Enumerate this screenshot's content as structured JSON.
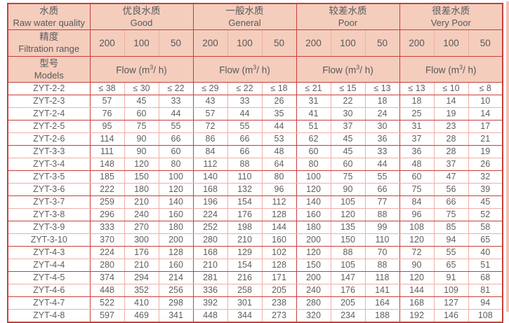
{
  "colors": {
    "border_dark": "#c5413c",
    "border_light": "#f1aea7",
    "header_fill": "#f4cdbd",
    "text": "#595959",
    "edge_strip": "#f3c2b4"
  },
  "table": {
    "header": {
      "quality_cn": "水质",
      "quality_en": "Raw water quality",
      "precision_cn": "精度",
      "precision_en": "Filtration range",
      "models_cn": "型号",
      "models_en": "Models",
      "flow_label_prefix": "Flow (m",
      "flow_sup": "3",
      "flow_label_suffix": "/ h)",
      "groups": [
        {
          "cn": "优良水质",
          "en": "Good"
        },
        {
          "cn": "一般水质",
          "en": "General"
        },
        {
          "cn": "较差水质",
          "en": "Poor"
        },
        {
          "cn": "很差水质",
          "en": "Very Poor"
        }
      ],
      "ranges": [
        "200",
        "100",
        "50"
      ]
    },
    "rows": [
      {
        "model": "ZYT-2-2",
        "values": [
          "≤ 38",
          "≤ 30",
          "≤ 22",
          "≤ 29",
          "≤ 22",
          "≤ 18",
          "≤ 21",
          "≤ 15",
          "≤ 13",
          "≤ 13",
          "≤ 10",
          "≤ 8"
        ]
      },
      {
        "model": "ZYT-2-3",
        "values": [
          "57",
          "45",
          "33",
          "43",
          "33",
          "26",
          "31",
          "22",
          "18",
          "18",
          "14",
          "10"
        ]
      },
      {
        "model": "ZYT-2-4",
        "values": [
          "76",
          "60",
          "44",
          "57",
          "44",
          "35",
          "41",
          "30",
          "24",
          "25",
          "19",
          "14"
        ]
      },
      {
        "model": "ZYT-2-5",
        "values": [
          "95",
          "75",
          "55",
          "72",
          "55",
          "44",
          "51",
          "37",
          "30",
          "31",
          "23",
          "17"
        ]
      },
      {
        "model": "ZYT-2-6",
        "values": [
          "114",
          "90",
          "66",
          "86",
          "66",
          "53",
          "62",
          "45",
          "36",
          "37",
          "28",
          "21"
        ]
      },
      {
        "model": "ZYT-3-3",
        "values": [
          "111",
          "90",
          "60",
          "84",
          "66",
          "48",
          "60",
          "45",
          "33",
          "36",
          "28",
          "19"
        ]
      },
      {
        "model": "ZYT-3-4",
        "values": [
          "148",
          "120",
          "80",
          "112",
          "88",
          "64",
          "80",
          "60",
          "44",
          "48",
          "37",
          "26"
        ]
      },
      {
        "model": "ZYT-3-5",
        "values": [
          "185",
          "150",
          "100",
          "140",
          "110",
          "80",
          "100",
          "75",
          "55",
          "60",
          "47",
          "32"
        ]
      },
      {
        "model": "ZYT-3-6",
        "values": [
          "222",
          "180",
          "120",
          "168",
          "132",
          "96",
          "120",
          "90",
          "66",
          "75",
          "56",
          "39"
        ]
      },
      {
        "model": "ZYT-3-7",
        "values": [
          "259",
          "210",
          "140",
          "196",
          "154",
          "112",
          "140",
          "105",
          "77",
          "84",
          "66",
          "45"
        ]
      },
      {
        "model": "ZYT-3-8",
        "values": [
          "296",
          "240",
          "160",
          "224",
          "176",
          "128",
          "160",
          "120",
          "88",
          "96",
          "75",
          "52"
        ]
      },
      {
        "model": "ZYT-3-9",
        "values": [
          "333",
          "270",
          "180",
          "252",
          "198",
          "144",
          "180",
          "135",
          "99",
          "108",
          "85",
          "58"
        ]
      },
      {
        "model": "ZYT-3-10",
        "values": [
          "370",
          "300",
          "200",
          "280",
          "210",
          "160",
          "200",
          "150",
          "110",
          "120",
          "94",
          "65"
        ]
      },
      {
        "model": "ZYT-4-3",
        "values": [
          "224",
          "176",
          "128",
          "168",
          "129",
          "102",
          "120",
          "88",
          "70",
          "72",
          "55",
          "40"
        ]
      },
      {
        "model": "ZYT-4-4",
        "values": [
          "280",
          "210",
          "160",
          "210",
          "154",
          "128",
          "150",
          "105",
          "88",
          "90",
          "65",
          "51"
        ]
      },
      {
        "model": "ZYT-4-5",
        "values": [
          "374",
          "294",
          "214",
          "281",
          "216",
          "171",
          "200",
          "147",
          "118",
          "120",
          "91",
          "68"
        ]
      },
      {
        "model": "ZYT-4-6",
        "values": [
          "448",
          "352",
          "256",
          "336",
          "258",
          "205",
          "240",
          "176",
          "141",
          "144",
          "109",
          "81"
        ]
      },
      {
        "model": "ZYT-4-7",
        "values": [
          "522",
          "410",
          "298",
          "392",
          "301",
          "238",
          "280",
          "205",
          "164",
          "168",
          "127",
          "94"
        ]
      },
      {
        "model": "ZYT-4-8",
        "values": [
          "597",
          "469",
          "341",
          "448",
          "344",
          "273",
          "320",
          "234",
          "188",
          "192",
          "146",
          "108"
        ]
      }
    ]
  }
}
